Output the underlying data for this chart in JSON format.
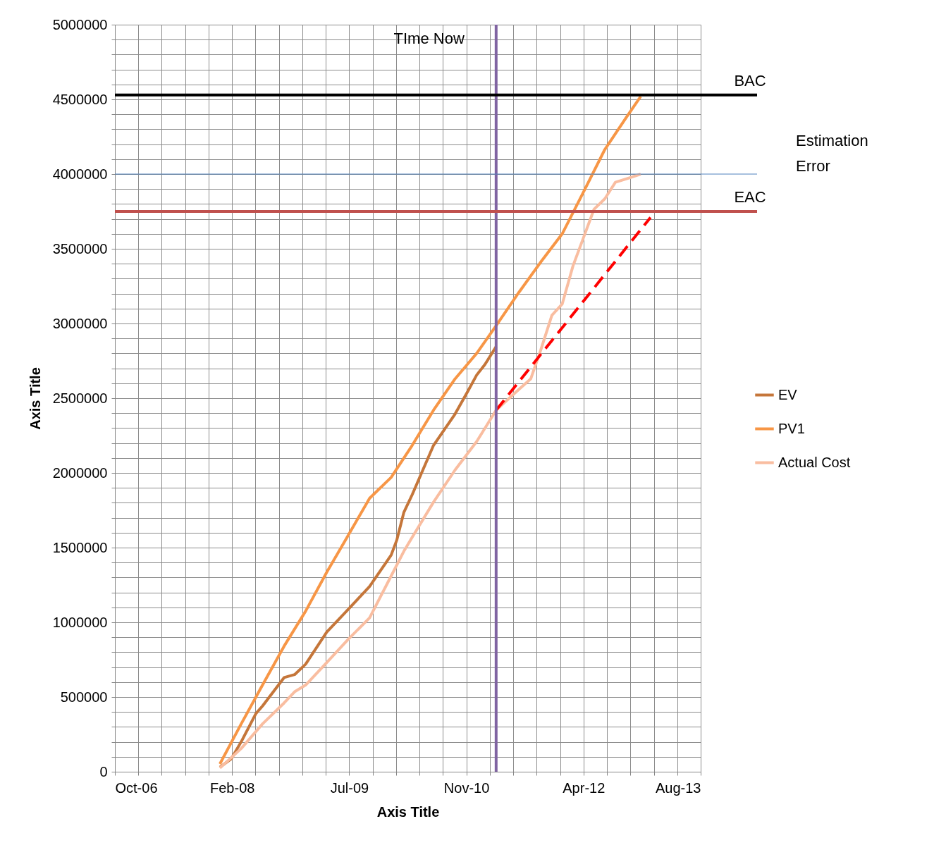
{
  "chart_data": {
    "type": "line",
    "xlabel": "Axis Title",
    "ylabel": "Axis Title",
    "xlim": [
      "2006-10-10",
      "2013-08-14"
    ],
    "ylim": [
      0,
      5000000
    ],
    "xticks": [
      {
        "value": "2006-10-10",
        "label": "Oct-06"
      },
      {
        "value": "2007-01-18",
        "label": null
      },
      {
        "value": "2007-04-28",
        "label": null
      },
      {
        "value": "2007-08-06",
        "label": null
      },
      {
        "value": "2007-11-14",
        "label": null
      },
      {
        "value": "2008-02-22",
        "label": "Feb-08"
      },
      {
        "value": "2008-06-01",
        "label": null
      },
      {
        "value": "2008-09-09",
        "label": null
      },
      {
        "value": "2008-12-18",
        "label": null
      },
      {
        "value": "2009-03-28",
        "label": null
      },
      {
        "value": "2009-07-06",
        "label": "Jul-09"
      },
      {
        "value": "2009-10-14",
        "label": null
      },
      {
        "value": "2010-01-22",
        "label": null
      },
      {
        "value": "2010-05-02",
        "label": null
      },
      {
        "value": "2010-08-10",
        "label": null
      },
      {
        "value": "2010-11-18",
        "label": "Nov-10"
      },
      {
        "value": "2011-02-26",
        "label": null
      },
      {
        "value": "2011-06-06",
        "label": null
      },
      {
        "value": "2011-09-14",
        "label": null
      },
      {
        "value": "2011-12-23",
        "label": null
      },
      {
        "value": "2012-04-01",
        "label": "Apr-12"
      },
      {
        "value": "2012-07-10",
        "label": null
      },
      {
        "value": "2012-10-18",
        "label": null
      },
      {
        "value": "2013-01-26",
        "label": null
      },
      {
        "value": "2013-05-06",
        "label": null
      },
      {
        "value": "2013-08-14",
        "label": "Aug-13"
      }
    ],
    "yticks": [
      0,
      {
        "value": 100000,
        "label": null
      },
      {
        "value": 200000,
        "label": null
      },
      {
        "value": 300000,
        "label": null
      },
      {
        "value": 400000,
        "label": null
      },
      500000,
      {
        "value": 600000,
        "label": null
      },
      {
        "value": 700000,
        "label": null
      },
      {
        "value": 800000,
        "label": null
      },
      {
        "value": 900000,
        "label": null
      },
      1000000,
      {
        "value": 1100000,
        "label": null
      },
      {
        "value": 1200000,
        "label": null
      },
      {
        "value": 1300000,
        "label": null
      },
      {
        "value": 1400000,
        "label": null
      },
      1500000,
      {
        "value": 1600000,
        "label": null
      },
      {
        "value": 1700000,
        "label": null
      },
      {
        "value": 1800000,
        "label": null
      },
      {
        "value": 1900000,
        "label": null
      },
      2000000,
      {
        "value": 2100000,
        "label": null
      },
      {
        "value": 2200000,
        "label": null
      },
      {
        "value": 2300000,
        "label": null
      },
      {
        "value": 2400000,
        "label": null
      },
      2500000,
      {
        "value": 2600000,
        "label": null
      },
      {
        "value": 2700000,
        "label": null
      },
      {
        "value": 2800000,
        "label": null
      },
      {
        "value": 2900000,
        "label": null
      },
      3000000,
      {
        "value": 3100000,
        "label": null
      },
      {
        "value": 3200000,
        "label": null
      },
      {
        "value": 3300000,
        "label": null
      },
      {
        "value": 3400000,
        "label": null
      },
      3500000,
      {
        "value": 3600000,
        "label": null
      },
      {
        "value": 3700000,
        "label": null
      },
      {
        "value": 3800000,
        "label": null
      },
      {
        "value": 3900000,
        "label": null
      },
      4000000,
      {
        "value": 4100000,
        "label": null
      },
      {
        "value": 4200000,
        "label": null
      },
      {
        "value": 4300000,
        "label": null
      },
      {
        "value": 4400000,
        "label": null
      },
      4500000,
      {
        "value": 4600000,
        "label": null
      },
      {
        "value": 4700000,
        "label": null
      },
      {
        "value": 4800000,
        "label": null
      },
      {
        "value": 4900000,
        "label": null
      },
      5000000
    ],
    "grid": true,
    "legend": "right",
    "marker": "none",
    "line_style": "solid",
    "series": [
      {
        "name": "EV",
        "color": "#c5763a",
        "x": [
          "2008-01-01",
          "2008-02-18",
          "2008-04-01",
          "2008-06-03",
          "2008-07-01",
          "2008-10-01",
          "2008-11-15",
          "2009-01-01",
          "2009-04-01",
          "2009-07-01",
          "2009-10-01",
          "2010-01-01",
          "2010-01-25",
          "2010-02-24",
          "2010-04-01",
          "2010-07-01",
          "2010-10-01",
          "2010-11-22",
          "2011-01-01",
          "2011-02-05",
          "2011-03-25"
        ],
        "values": [
          30000,
          85000,
          200000,
          390000,
          440000,
          630000,
          650000,
          720000,
          935000,
          1085000,
          1240000,
          1450000,
          1550000,
          1735000,
          1855000,
          2185000,
          2395000,
          2540000,
          2655000,
          2725000,
          2845000
        ]
      },
      {
        "name": "PV1",
        "color": "#f79646",
        "x": [
          "2008-01-01",
          "2008-04-01",
          "2008-07-01",
          "2008-10-01",
          "2009-01-01",
          "2009-04-01",
          "2009-07-01",
          "2009-10-01",
          "2010-01-01",
          "2010-04-01",
          "2010-07-01",
          "2010-10-01",
          "2011-01-01",
          "2011-03-25",
          "2011-07-01",
          "2011-10-01",
          "2012-01-01",
          "2012-04-01",
          "2012-07-01",
          "2012-10-01",
          "2012-12-01"
        ],
        "values": [
          52000,
          320000,
          580000,
          840000,
          1075000,
          1335000,
          1580000,
          1830000,
          1970000,
          2185000,
          2420000,
          2630000,
          2800000,
          2985000,
          3210000,
          3410000,
          3600000,
          3880000,
          4165000,
          4380000,
          4520000
        ]
      },
      {
        "name": "Actual Cost",
        "color": "#f9bda0",
        "x": [
          "2008-01-01",
          "2008-04-01",
          "2008-07-01",
          "2008-10-01",
          "2008-11-15",
          "2009-01-01",
          "2009-04-01",
          "2009-07-01",
          "2009-10-01",
          "2010-01-01",
          "2010-02-24",
          "2010-04-01",
          "2010-07-01",
          "2010-10-01",
          "2011-01-01",
          "2011-03-25",
          "2011-07-01",
          "2011-08-20",
          "2011-10-01",
          "2011-11-18",
          "2012-01-01",
          "2012-02-16",
          "2012-04-01",
          "2012-05-16",
          "2012-07-01",
          "2012-08-15",
          "2012-10-14",
          "2012-12-01"
        ],
        "values": [
          25000,
          155000,
          320000,
          460000,
          535000,
          580000,
          730000,
          885000,
          1030000,
          1310000,
          1475000,
          1570000,
          1805000,
          2020000,
          2210000,
          2420000,
          2560000,
          2630000,
          2820000,
          3055000,
          3130000,
          3385000,
          3575000,
          3765000,
          3835000,
          3945000,
          3975000,
          4000000
        ]
      },
      {
        "type": "line",
        "color": "#ff0000",
        "line_style": "dashed",
        "x": [
          "2011-03-25",
          "2013-01-12"
        ],
        "values": [
          2420000,
          3710000
        ]
      }
    ],
    "ref_lines": [
      {
        "axis": "x",
        "value": "2011-03-25",
        "label": "TIme Now",
        "color": "#8064a2"
      },
      {
        "axis": "y",
        "value": 4530000,
        "label": "BAC",
        "color": "#000000"
      },
      {
        "axis": "y",
        "value": 4000000,
        "label": null,
        "color": "#4f81bd"
      },
      {
        "axis": "y",
        "value": 3750000,
        "label": "EAC",
        "color": "#c0504d"
      }
    ],
    "annotations": [
      "Estimation Error"
    ]
  }
}
